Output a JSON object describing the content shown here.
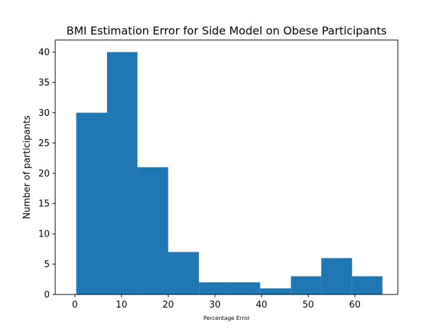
{
  "chart_data": {
    "type": "bar",
    "title": "BMI Estimation Error for Side Model on Obese Participants",
    "xlabel": "Percentage Error",
    "ylabel": "Number of participants",
    "bin_edges": [
      0.3,
      6.9,
      13.4,
      20.0,
      26.6,
      33.1,
      39.7,
      46.3,
      52.8,
      59.4,
      65.9
    ],
    "values": [
      30,
      40,
      21,
      7,
      2,
      2,
      1,
      3,
      6,
      3
    ],
    "xlim": [
      -4.2,
      69.2
    ],
    "ylim": [
      0,
      42
    ],
    "xticks": [
      0,
      10,
      20,
      30,
      40,
      50,
      60
    ],
    "yticks": [
      0,
      5,
      10,
      15,
      20,
      25,
      30,
      35,
      40
    ],
    "xtick_labels": [
      "0",
      "10",
      "20",
      "30",
      "40",
      "50",
      "60"
    ],
    "ytick_labels": [
      "0",
      "5",
      "10",
      "15",
      "20",
      "25",
      "30",
      "35",
      "40"
    ],
    "bar_color": "#1f77b4",
    "grid": false,
    "legend": "none"
  }
}
